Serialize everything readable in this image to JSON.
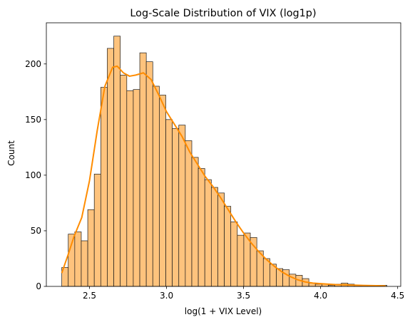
{
  "chart_data": {
    "type": "bar",
    "title": "Log-Scale Distribution of VIX (log1p)",
    "xlabel": "log(1 + VIX Level)",
    "ylabel": "Count",
    "xlim": [
      2.22,
      4.52
    ],
    "ylim": [
      0,
      237
    ],
    "x_ticks": [
      2.5,
      3.0,
      3.5,
      4.0,
      4.5
    ],
    "x_tick_labels": [
      "2.5",
      "3.0",
      "3.5",
      "4.0",
      "4.5"
    ],
    "y_ticks": [
      0,
      50,
      100,
      150,
      200
    ],
    "y_tick_labels": [
      "0",
      "50",
      "100",
      "150",
      "200"
    ],
    "bin_start": 2.32,
    "bin_width": 0.0422,
    "counts": [
      17,
      47,
      49,
      41,
      69,
      101,
      179,
      214,
      225,
      190,
      176,
      177,
      210,
      202,
      180,
      172,
      150,
      142,
      145,
      131,
      116,
      106,
      96,
      89,
      84,
      72,
      58,
      46,
      48,
      44,
      32,
      25,
      20,
      16,
      15,
      11,
      10,
      7,
      3,
      2,
      2,
      1,
      2,
      3,
      2,
      1,
      1,
      1,
      1,
      1
    ],
    "kde": {
      "x": [
        2.32,
        2.36,
        2.4,
        2.45,
        2.5,
        2.55,
        2.6,
        2.65,
        2.68,
        2.72,
        2.76,
        2.8,
        2.85,
        2.9,
        2.95,
        3.0,
        3.05,
        3.1,
        3.15,
        3.2,
        3.25,
        3.3,
        3.35,
        3.4,
        3.45,
        3.5,
        3.55,
        3.6,
        3.65,
        3.7,
        3.75,
        3.8,
        3.85,
        3.9,
        3.95,
        4.0,
        4.05,
        4.1,
        4.2,
        4.3,
        4.42
      ],
      "y": [
        12,
        28,
        45,
        62,
        95,
        140,
        180,
        197,
        198,
        192,
        189,
        190,
        192,
        186,
        172,
        157,
        146,
        135,
        121,
        110,
        99,
        90,
        80,
        69,
        58,
        48,
        39,
        31,
        24,
        18,
        13,
        9,
        6,
        4,
        3,
        2.5,
        2,
        1.6,
        1.2,
        0.8,
        0.5
      ]
    },
    "bar_fill": "#fec37d",
    "bar_edge": "#1a1a1a",
    "kde_color": "#ff8c00",
    "grid": false,
    "legend": false
  }
}
